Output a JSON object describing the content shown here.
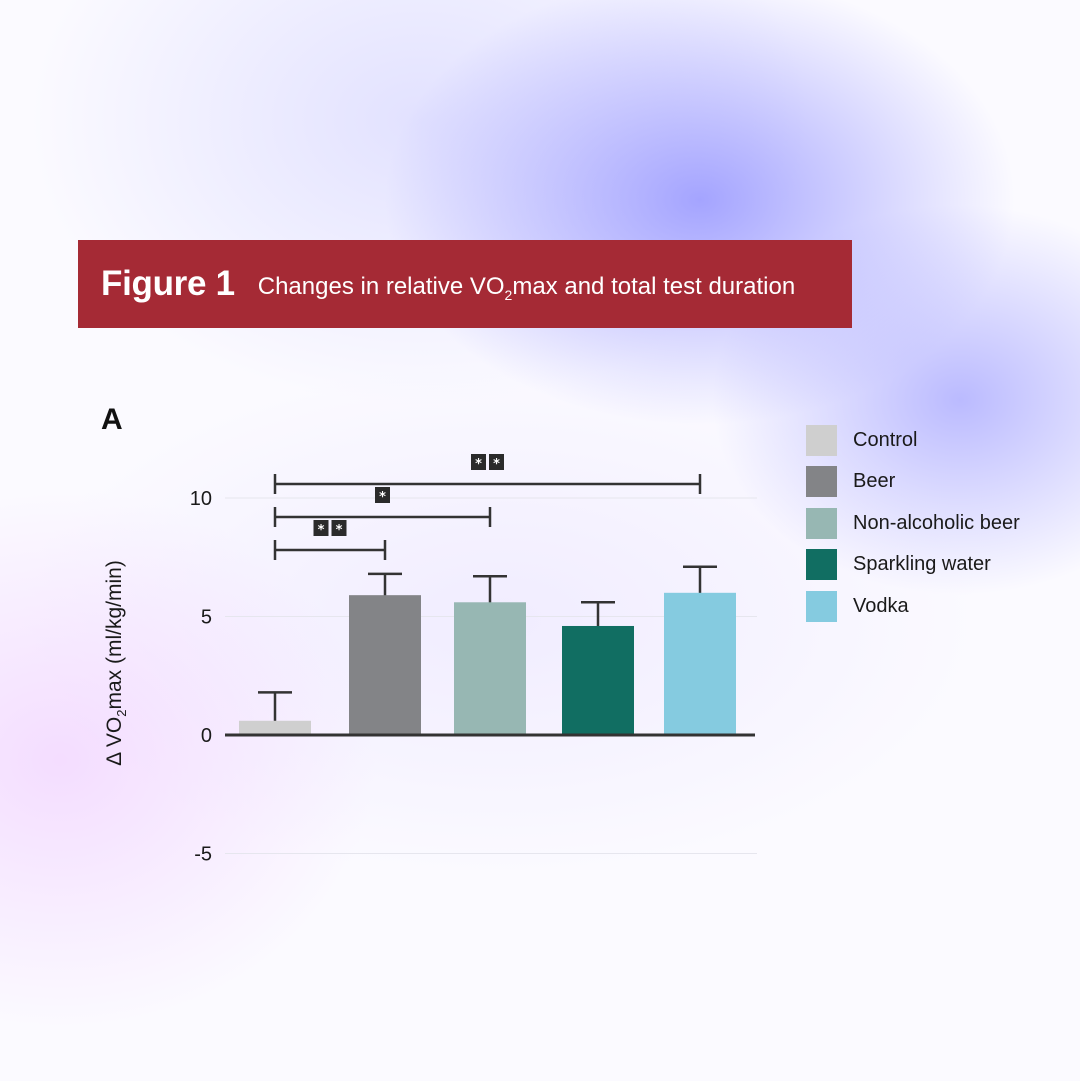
{
  "figure": {
    "label": "Figure 1",
    "subtitle_pre": "Changes in relative VO",
    "subtitle_sub": "2",
    "subtitle_post": "max and total test duration"
  },
  "panel": "A",
  "chart_data": {
    "type": "bar",
    "categories": [
      "Control",
      "Beer",
      "Non-alcoholic beer",
      "Sparkling water",
      "Vodka"
    ],
    "values": [
      0.6,
      5.9,
      5.6,
      4.6,
      6.0
    ],
    "error_upper": [
      1.8,
      6.8,
      6.7,
      5.6,
      7.1
    ],
    "colors": [
      "#cfcfcf",
      "#838487",
      "#97b7b3",
      "#116e62",
      "#85cbe0"
    ],
    "ylabel_pre": "Δ VO",
    "ylabel_sub": "2",
    "ylabel_post": "max (ml/kg/min)",
    "ylim": [
      -7.5,
      11
    ],
    "yticks": [
      10,
      5,
      0,
      -5
    ],
    "grid": true,
    "legend_position": "right",
    "significance": [
      {
        "from": "Control",
        "to": "Beer",
        "label": "**"
      },
      {
        "from": "Control",
        "to": "Non-alcoholic beer",
        "label": "*"
      },
      {
        "from": "Control",
        "to": "Vodka",
        "label": "**"
      }
    ]
  }
}
